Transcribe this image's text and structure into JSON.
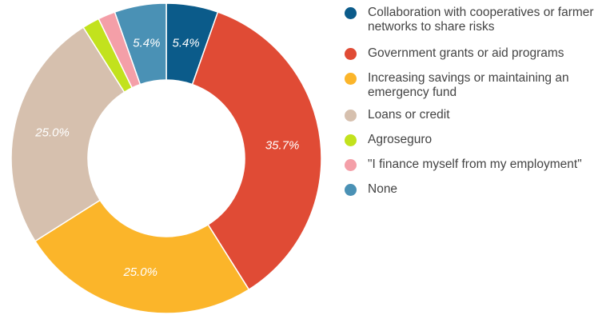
{
  "chart_data": {
    "type": "pie",
    "donut": true,
    "legend_position": "right",
    "title": "",
    "slices": [
      {
        "label": "Collaboration with cooperatives or farmer networks to share risks",
        "value": 5.4,
        "display": "5.4%",
        "color": "#0b5b8a"
      },
      {
        "label": "Government grants or aid programs",
        "value": 35.7,
        "display": "35.7%",
        "color": "#e04b35"
      },
      {
        "label": "Increasing savings or maintaining an emergency fund",
        "value": 25.0,
        "display": "25.0%",
        "color": "#fbb52a"
      },
      {
        "label": "Loans or credit",
        "value": 25.0,
        "display": "25.0%",
        "color": "#d6c0ae"
      },
      {
        "label": "Agroseguro",
        "value": 1.8,
        "display": "",
        "color": "#c2e21d"
      },
      {
        "label": "\"I finance myself from my employment\"",
        "value": 1.8,
        "display": "",
        "color": "#f49fa8"
      },
      {
        "label": "None",
        "value": 5.4,
        "display": "5.4%",
        "color": "#4a91b5"
      }
    ]
  }
}
